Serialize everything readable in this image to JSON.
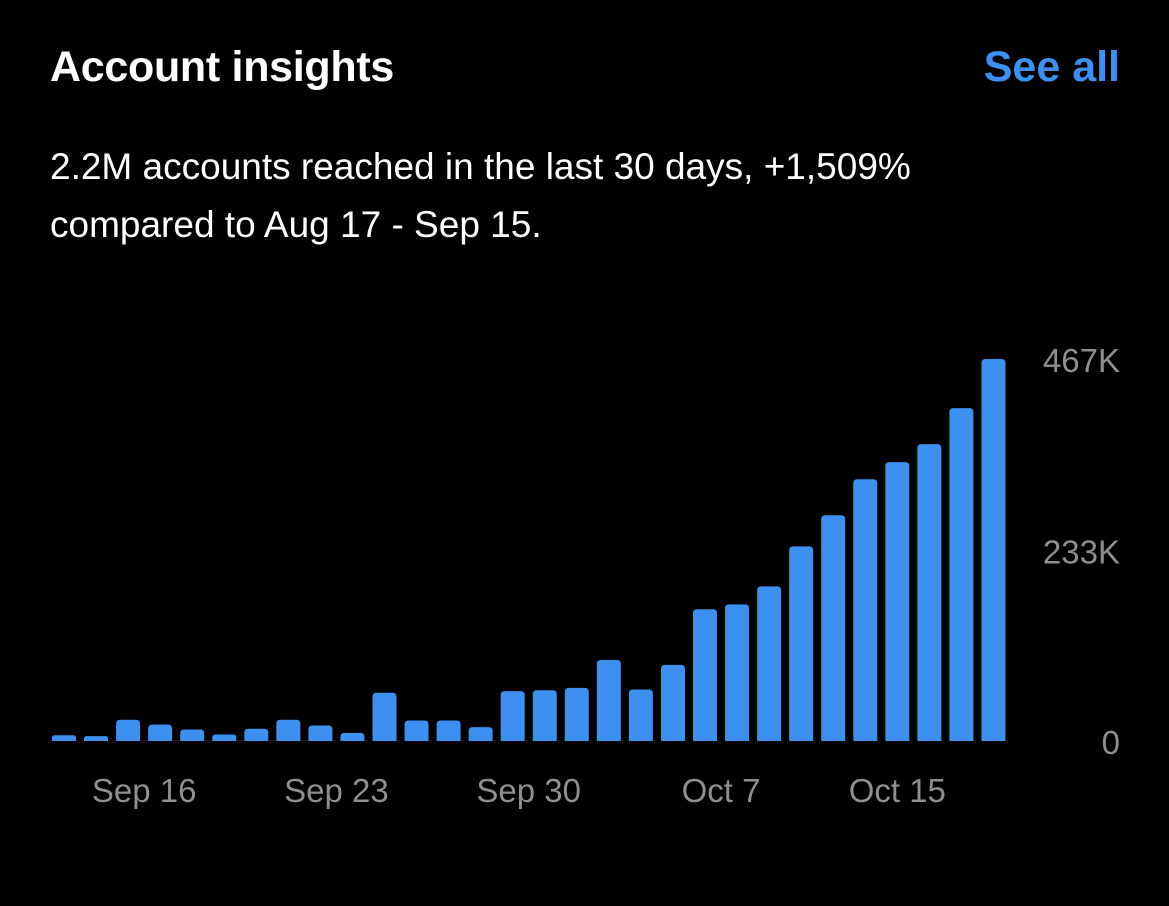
{
  "header": {
    "title": "Account insights",
    "see_all_label": "See all"
  },
  "summary": {
    "line1": "2.2M accounts reached in the last 30 days, +1,509%",
    "line2": "compared to Aug 17 - Sep 15."
  },
  "colors": {
    "background": "#000000",
    "accent": "#3d8ff0",
    "bar": "#3d8ff0",
    "muted_text": "#8e8e93"
  },
  "chart_data": {
    "type": "bar",
    "xlabel": "",
    "ylabel": "",
    "y_ticks": [
      "467K",
      "233K",
      "0"
    ],
    "y_tick_values": [
      467000,
      233000,
      0
    ],
    "ylim": [
      0,
      467000
    ],
    "x_tick_labels": [
      "Sep 16",
      "Sep 23",
      "Sep 30",
      "Oct 7",
      "Oct 15"
    ],
    "x_tick_after_bar_index": [
      2.5,
      8.5,
      14.5,
      20.5,
      26
    ],
    "grid": false,
    "values": [
      7000,
      6000,
      26000,
      20000,
      14000,
      8000,
      15000,
      26000,
      19000,
      10000,
      59000,
      25000,
      25000,
      17000,
      61000,
      62000,
      65000,
      99000,
      63000,
      93000,
      161000,
      167000,
      189000,
      238000,
      276000,
      320000,
      341000,
      363000,
      407000,
      467000
    ]
  }
}
